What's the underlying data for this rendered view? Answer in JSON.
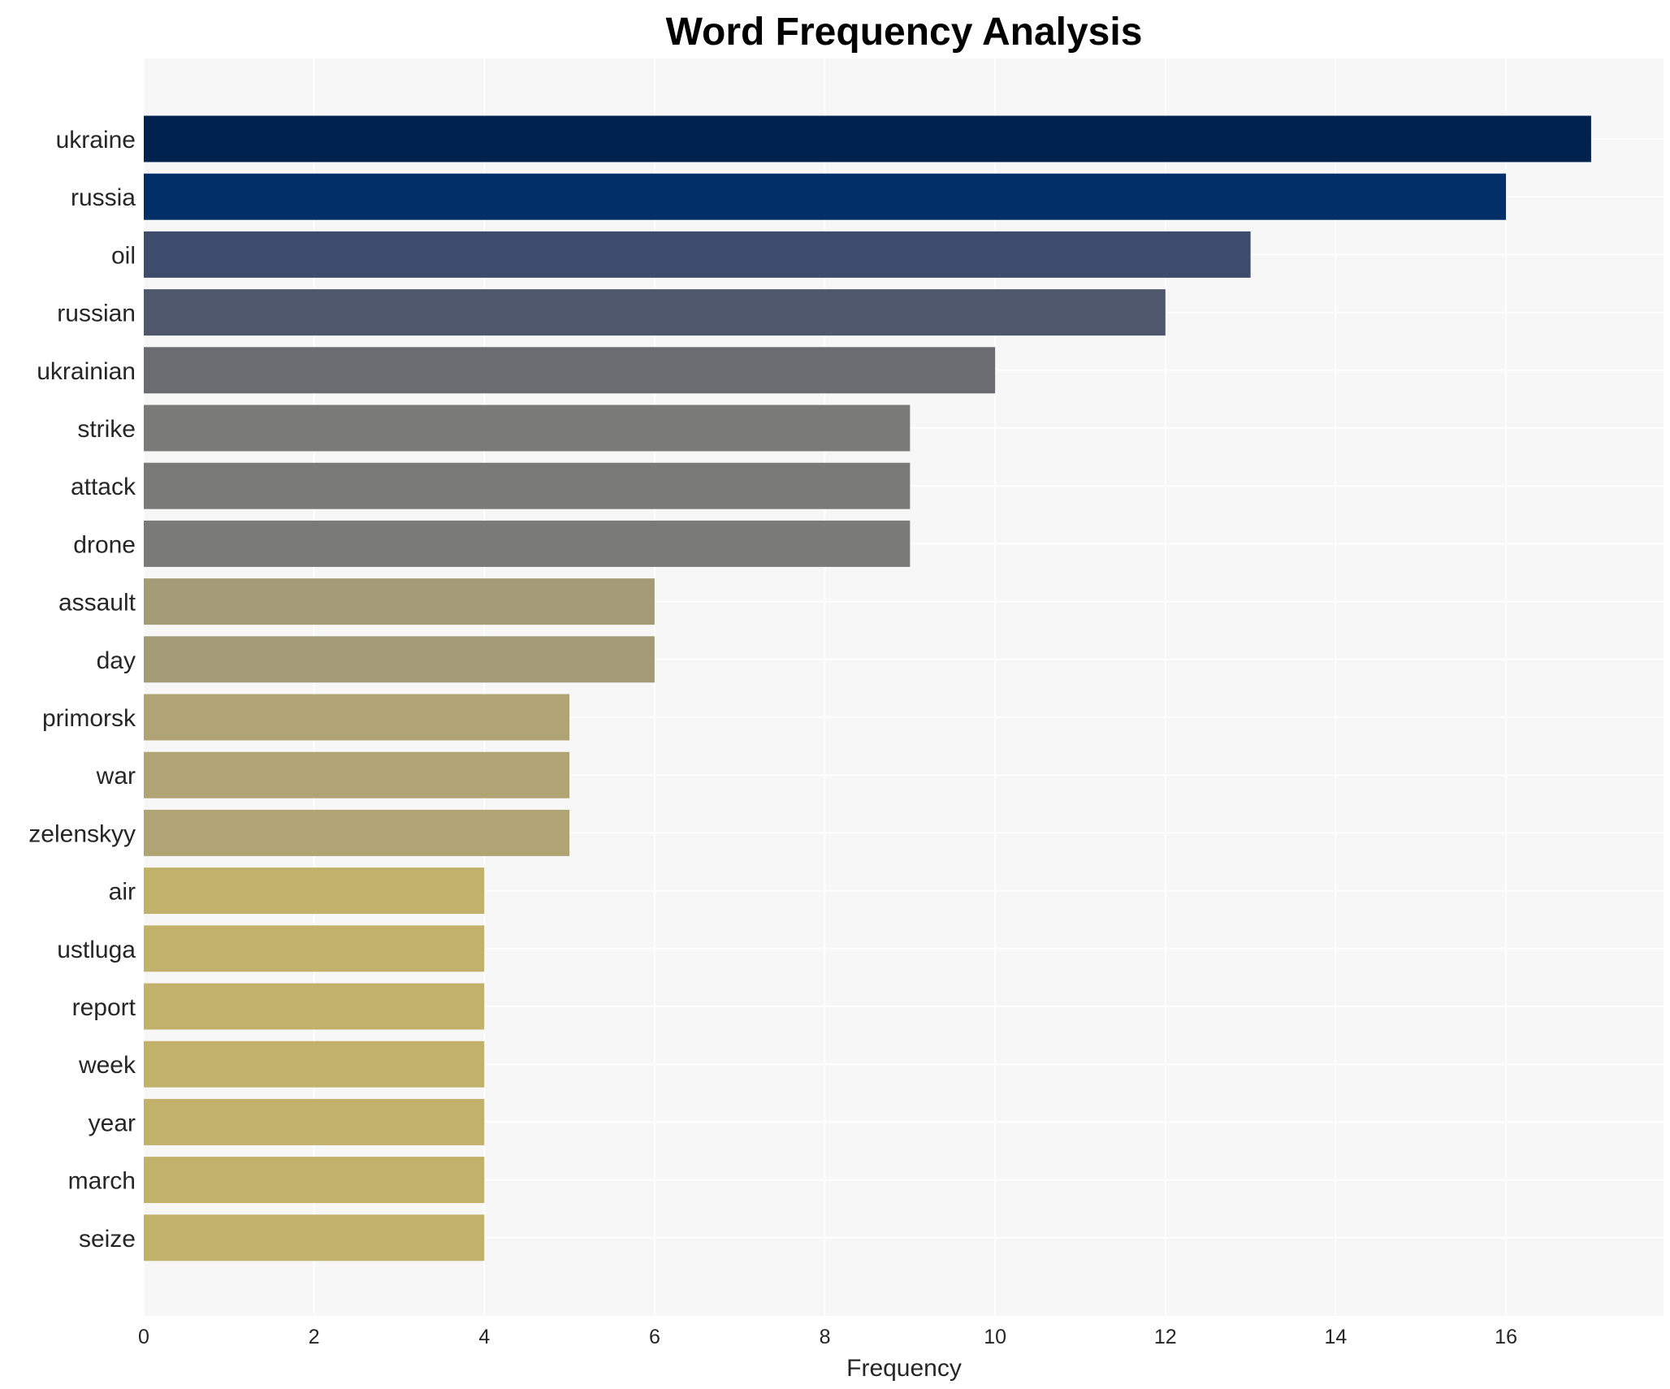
{
  "chart_data": {
    "type": "bar",
    "orientation": "horizontal",
    "title": "Word Frequency Analysis",
    "xlabel": "Frequency",
    "ylabel": "",
    "xlim": [
      0,
      17.85
    ],
    "xticks": [
      0,
      2,
      4,
      6,
      8,
      10,
      12,
      14,
      16
    ],
    "grid": true,
    "categories": [
      "ukraine",
      "russia",
      "oil",
      "russian",
      "ukrainian",
      "strike",
      "attack",
      "drone",
      "assault",
      "day",
      "primorsk",
      "war",
      "zelenskyy",
      "air",
      "ustluga",
      "report",
      "week",
      "year",
      "march",
      "seize"
    ],
    "values": [
      17,
      16,
      13,
      12,
      10,
      9,
      9,
      9,
      6,
      6,
      5,
      5,
      5,
      4,
      4,
      4,
      4,
      4,
      4,
      4
    ],
    "colors": [
      "#00224e",
      "#022f68",
      "#3d4b6d",
      "#4f576c",
      "#6a6c71",
      "#7a7b78",
      "#7a7b78",
      "#7a7b78",
      "#a39b75",
      "#a39b75",
      "#b0a474",
      "#b0a474",
      "#b0a474",
      "#c2b16b",
      "#c2b16b",
      "#c2b16b",
      "#c2b16b",
      "#c2b16b",
      "#c2b16b",
      "#c2b16b"
    ],
    "background": "#f7f7f7",
    "grid_color": "#ffffff"
  }
}
